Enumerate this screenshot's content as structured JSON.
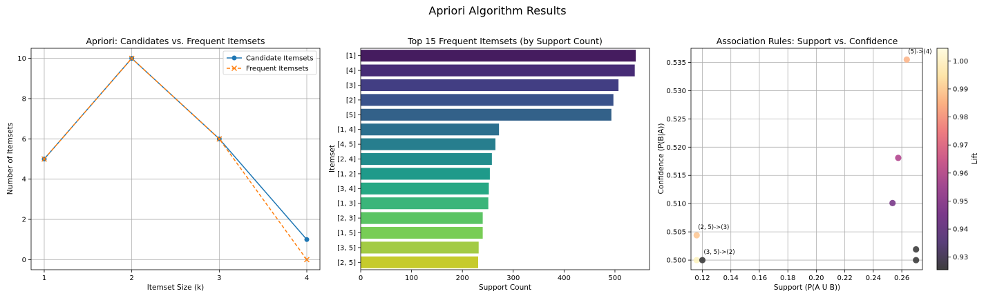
{
  "figure": {
    "suptitle": "Apriori Algorithm Results"
  },
  "chart_data": [
    {
      "type": "line",
      "title": "Apriori: Candidates vs. Frequent Itemsets",
      "xlabel": "Itemset Size (k)",
      "ylabel": "Number of Itemsets",
      "x": [
        1,
        2,
        3,
        4
      ],
      "xlim": [
        0.85,
        4.15
      ],
      "ylim": [
        -0.5,
        10.5
      ],
      "xticks": [
        1,
        2,
        3,
        4
      ],
      "yticks": [
        0,
        2,
        4,
        6,
        8,
        10
      ],
      "grid": true,
      "legend_position": "top-right",
      "series": [
        {
          "name": "Candidate Itemsets",
          "values": [
            5,
            10,
            6,
            1
          ],
          "color": "#1f77b4",
          "marker": "o",
          "linestyle": "solid"
        },
        {
          "name": "Frequent Itemsets",
          "values": [
            5,
            10,
            6,
            0
          ],
          "color": "#ff7f0e",
          "marker": "x",
          "linestyle": "dashed"
        }
      ]
    },
    {
      "type": "bar",
      "orientation": "horizontal",
      "title": "Top 15 Frequent Itemsets (by Support Count)",
      "xlabel": "Support Count",
      "ylabel": "Itemset",
      "categories": [
        "[1]",
        "[4]",
        "[3]",
        "[2]",
        "[5]",
        "[1, 4]",
        "[4, 5]",
        "[2, 4]",
        "[1, 2]",
        "[3, 4]",
        "[1, 3]",
        "[2, 3]",
        "[1, 5]",
        "[3, 5]",
        "[2, 5]"
      ],
      "values": [
        541,
        539,
        507,
        497,
        493,
        272,
        265,
        258,
        254,
        252,
        251,
        240,
        240,
        232,
        231
      ],
      "colors": [
        "#451c5f",
        "#472c76",
        "#423e83",
        "#3a528b",
        "#336189",
        "#2c6f8e",
        "#277e8e",
        "#228c8d",
        "#1f9a8a",
        "#27a884",
        "#3bb57a",
        "#5bc464",
        "#78cd55",
        "#a3cb45",
        "#c6cb2c"
      ],
      "xlim": [
        0,
        568
      ],
      "xticks": [
        0,
        100,
        200,
        300,
        400,
        500
      ],
      "grid": false
    },
    {
      "type": "scatter",
      "title": "Association Rules: Support vs. Confidence",
      "xlabel": "Support (P(A U B))",
      "ylabel": "Confidence (P(B|A))",
      "xlim": [
        0.112,
        0.2745
      ],
      "ylim": [
        0.4983,
        0.5375
      ],
      "xticks": [
        0.12,
        0.14,
        0.16,
        0.18,
        0.2,
        0.22,
        0.24,
        0.26
      ],
      "xtick_labels": [
        "0.12",
        "0.14",
        "0.16",
        "0.18",
        "0.20",
        "0.22",
        "0.24",
        "0.26"
      ],
      "yticks": [
        0.5,
        0.505,
        0.51,
        0.515,
        0.52,
        0.525,
        0.53,
        0.535
      ],
      "ytick_labels": [
        "0.500",
        "0.505",
        "0.510",
        "0.515",
        "0.520",
        "0.525",
        "0.530",
        "0.535"
      ],
      "grid": true,
      "points": [
        {
          "x": 0.2635,
          "y": 0.5355,
          "lift": 0.985,
          "color": "#fcb589",
          "label": "(5)->(4)"
        },
        {
          "x": 0.2575,
          "y": 0.5181,
          "lift": 0.959,
          "color": "#b2468f",
          "label": ""
        },
        {
          "x": 0.2535,
          "y": 0.5101,
          "lift": 0.948,
          "color": "#7a3a8a",
          "label": ""
        },
        {
          "x": 0.27,
          "y": 0.5019,
          "lift": 0.928,
          "color": "#3d3d3d",
          "label": ""
        },
        {
          "x": 0.27,
          "y": 0.5,
          "lift": 0.928,
          "color": "#3d3d3d",
          "label": ""
        },
        {
          "x": 0.116,
          "y": 0.5044,
          "lift": 0.988,
          "color": "#fdc895",
          "label": "(2, 5)->(3)"
        },
        {
          "x": 0.116,
          "y": 0.5,
          "lift": 1.003,
          "color": "#fdf3c0",
          "label": ""
        },
        {
          "x": 0.12,
          "y": 0.5,
          "lift": 0.928,
          "color": "#3d3d3d",
          "label": "(3, 5)->(2)"
        }
      ],
      "colorbar": {
        "label": "Lift",
        "min": 0.9255,
        "max": 1.0045,
        "ticks": [
          0.93,
          0.94,
          0.95,
          0.96,
          0.97,
          0.98,
          0.99,
          1.0
        ],
        "tick_labels": [
          "0.93",
          "0.94",
          "0.95",
          "0.96",
          "0.97",
          "0.98",
          "0.99",
          "1.00"
        ],
        "colors": [
          "#3d3d3d",
          "#5a3f7a",
          "#7a3a8a",
          "#a04890",
          "#cc5b8a",
          "#ee7d80",
          "#fbb082",
          "#fde4a8",
          "#fffce0"
        ]
      }
    }
  ]
}
